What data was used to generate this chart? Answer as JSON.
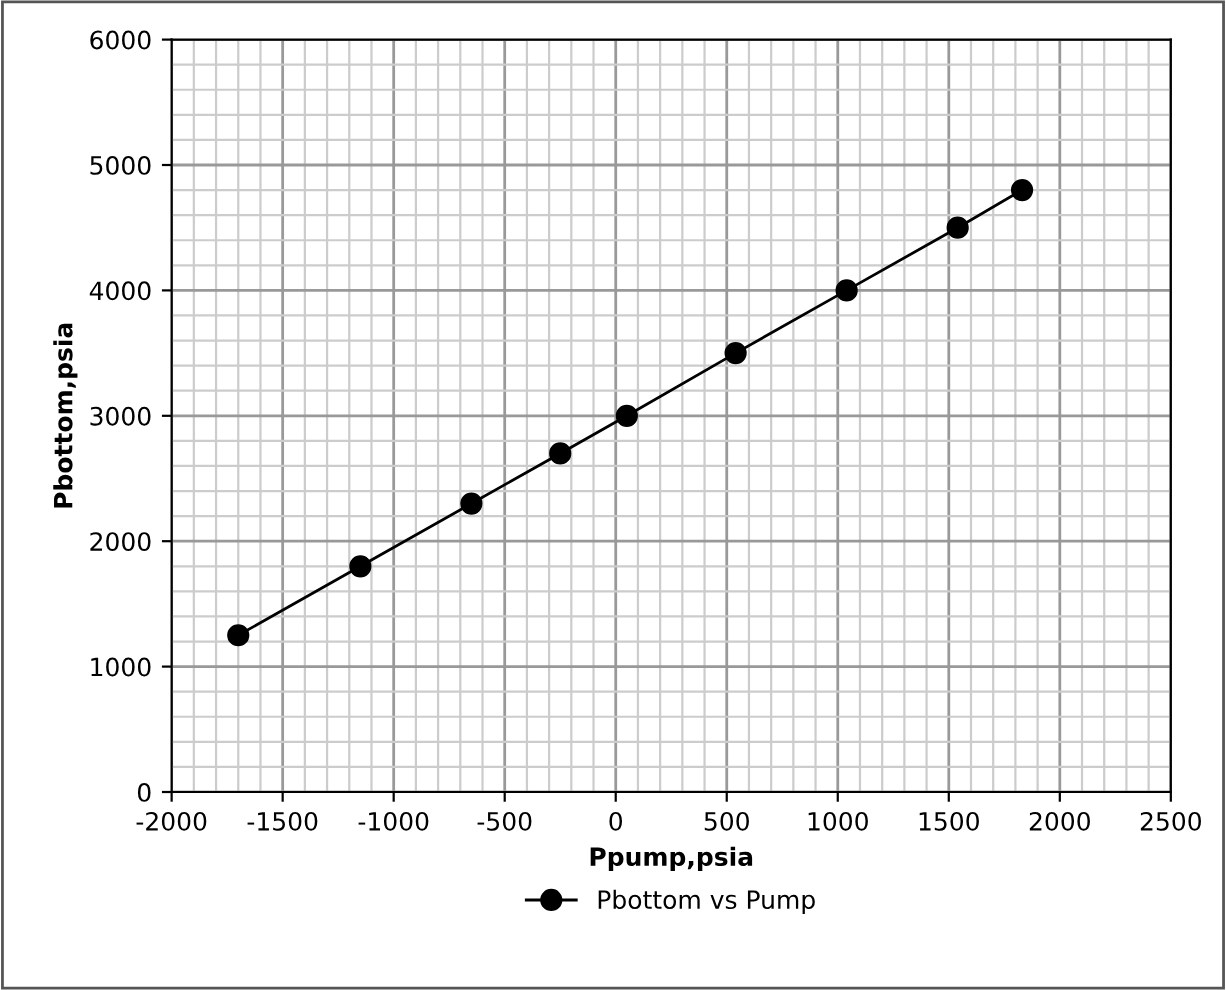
{
  "chart_data": {
    "type": "line",
    "xlabel": "Ppump,psia",
    "ylabel": "Pbottom,psia",
    "x": [
      -1700,
      -1150,
      -650,
      -250,
      50,
      540,
      1040,
      1540,
      1830
    ],
    "series": [
      {
        "name": "Pbottom vs Pump",
        "color": "#000000",
        "values": [
          1250,
          1800,
          2300,
          2700,
          3000,
          3500,
          4000,
          4500,
          4800
        ]
      }
    ],
    "xlim": [
      -2000,
      2500
    ],
    "xticks": [
      -2000,
      -1500,
      -1000,
      -500,
      0,
      500,
      1000,
      1500,
      2000,
      2500
    ],
    "ylim": [
      0,
      6000
    ],
    "yticks": [
      0,
      1000,
      2000,
      3000,
      4000,
      5000,
      6000
    ],
    "grid": true,
    "legend": "bottom",
    "marker": "circle",
    "line_style": "solid"
  }
}
